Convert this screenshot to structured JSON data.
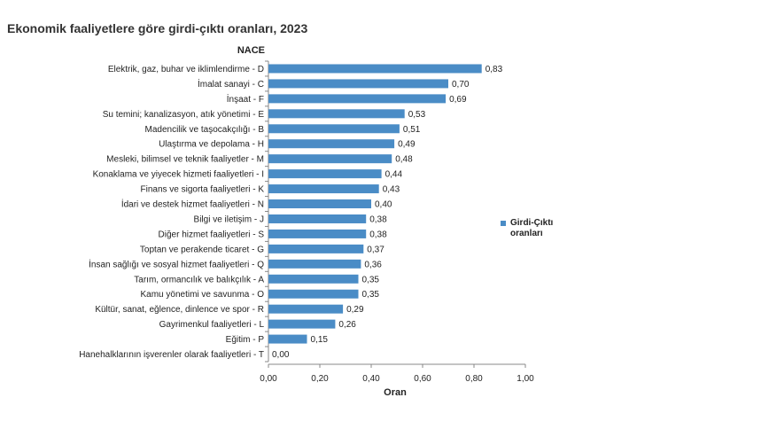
{
  "title": "Ekonomik faaliyetlere göre girdi-çıktı oranları, 2023",
  "chart_data": {
    "type": "bar",
    "orientation": "horizontal",
    "ylabel": "NACE",
    "xlabel": "Oran",
    "xlim": [
      0,
      1
    ],
    "xticks": [
      "0,00",
      "0,20",
      "0,40",
      "0,60",
      "0,80",
      "1,00"
    ],
    "legend_position": "right",
    "bar_color": "#4a8cc6",
    "categories": [
      "Elektrik, gaz, buhar ve iklimlendirme - D",
      "İmalat sanayi - C",
      "İnşaat - F",
      "Su temini; kanalizasyon, atık yönetimi - E",
      "Madencilik ve taşocakçılığı - B",
      "Ulaştırma ve depolama - H",
      "Mesleki, bilimsel ve teknik faaliyetler - M",
      "Konaklama ve yiyecek hizmeti faaliyetleri - I",
      "Finans ve sigorta faaliyetleri - K",
      "İdari ve destek hizmet faaliyetleri - N",
      "Bilgi ve iletişim - J",
      "Diğer hizmet faaliyetleri - S",
      "Toptan ve perakende ticaret - G",
      "İnsan sağlığı ve sosyal hizmet faaliyetleri - Q",
      "Tarım, ormancılık ve balıkçılık - A",
      "Kamu yönetimi ve savunma - O",
      "Kültür, sanat, eğlence, dinlence ve spor - R",
      "Gayrimenkul faaliyetleri - L",
      "Eğitim - P",
      "Hanehalklarının işverenler olarak faaliyetleri - T"
    ],
    "series": [
      {
        "name": "Girdi-Çıktı oranları",
        "values": [
          0.83,
          0.7,
          0.69,
          0.53,
          0.51,
          0.49,
          0.48,
          0.44,
          0.43,
          0.4,
          0.38,
          0.38,
          0.37,
          0.36,
          0.35,
          0.35,
          0.29,
          0.26,
          0.15,
          0.0
        ],
        "labels": [
          "0,83",
          "0,70",
          "0,69",
          "0,53",
          "0,51",
          "0,49",
          "0,48",
          "0,44",
          "0,43",
          "0,40",
          "0,38",
          "0,38",
          "0,37",
          "0,36",
          "0,35",
          "0,35",
          "0,29",
          "0,26",
          "0,15",
          "0,00"
        ]
      }
    ]
  }
}
